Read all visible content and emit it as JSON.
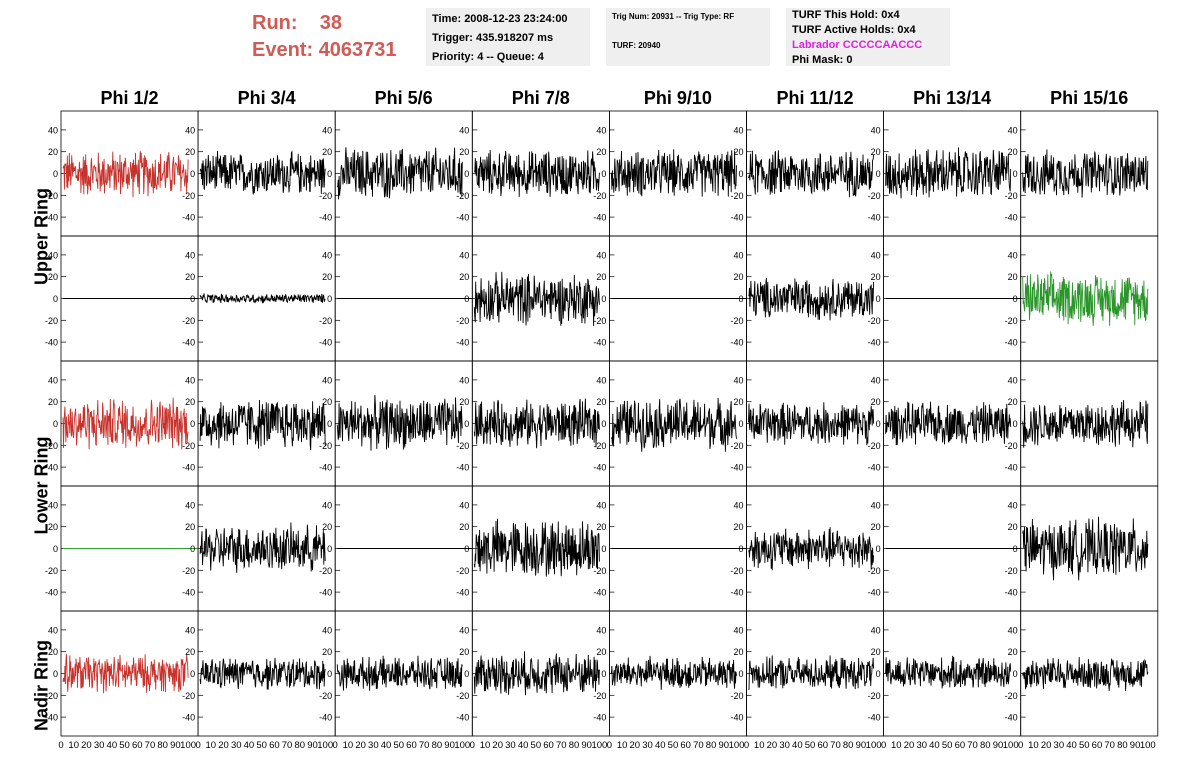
{
  "header": {
    "run_label": "Run:",
    "run_value": "38",
    "event_label": "Event:",
    "event_value": "4063731",
    "run_color": "#d15a55"
  },
  "info_box_1": {
    "time": "Time: 2008-12-23 23:24:00",
    "trigger": "Trigger: 435.918207 ms",
    "priority_queue": "Priority: 4 -- Queue: 4"
  },
  "info_box_2": {
    "trig_num_type": "Trig Num: 20931 -- Trig Type: RF",
    "turf": "TURF: 20940"
  },
  "info_box_3": {
    "turf_this_hold": "TURF This Hold: 0x4",
    "turf_active_holds": "TURF Active Holds: 0x4",
    "labrador": "Labrador CCCCCAACCC",
    "labrador_color": "#e020e0",
    "phi_mask": "Phi Mask: 0"
  },
  "columns": [
    "Phi 1/2",
    "Phi 3/4",
    "Phi 5/6",
    "Phi 7/8",
    "Phi 9/10",
    "Phi 11/12",
    "Phi 13/14",
    "Phi 15/16"
  ],
  "row_labels": {
    "upper": "Upper Ring",
    "lower": "Lower Ring",
    "nadir": "Nadir Ring"
  },
  "chart_data": {
    "type": "line",
    "grid": false,
    "ylim": [
      -50,
      50
    ],
    "xlim": [
      0,
      100
    ],
    "yticks": [
      "40",
      "20",
      "0",
      "-20",
      "-40"
    ],
    "xticks": [
      "0",
      "10",
      "20",
      "30",
      "40",
      "50",
      "60",
      "70",
      "80",
      "90",
      "100"
    ],
    "series_colors": {
      "black": "#000000",
      "red": "#c8322c",
      "green": "#2a962a",
      "flat_green": "#30a030"
    },
    "panel_rows": [
      {
        "row": "upper-1",
        "traces": [
          {
            "style": "red",
            "amplitude": 20
          },
          {
            "style": "black",
            "amplitude": 18
          },
          {
            "style": "black",
            "amplitude": 22
          },
          {
            "style": "black",
            "amplitude": 20
          },
          {
            "style": "black",
            "amplitude": 20
          },
          {
            "style": "black",
            "amplitude": 20
          },
          {
            "style": "black",
            "amplitude": 22
          },
          {
            "style": "black",
            "amplitude": 20
          }
        ]
      },
      {
        "row": "upper-2",
        "traces": [
          {
            "style": "flat",
            "amplitude": 0
          },
          {
            "style": "black",
            "amplitude": 4
          },
          {
            "style": "flat",
            "amplitude": 0
          },
          {
            "style": "black",
            "amplitude": 22
          },
          {
            "style": "flat",
            "amplitude": 0
          },
          {
            "style": "black",
            "amplitude": 18
          },
          {
            "style": "flat",
            "amplitude": 0
          },
          {
            "style": "green",
            "amplitude": 22
          }
        ]
      },
      {
        "row": "lower-1",
        "traces": [
          {
            "style": "red",
            "amplitude": 22
          },
          {
            "style": "black",
            "amplitude": 22
          },
          {
            "style": "black",
            "amplitude": 22
          },
          {
            "style": "black",
            "amplitude": 20
          },
          {
            "style": "black",
            "amplitude": 22
          },
          {
            "style": "black",
            "amplitude": 18
          },
          {
            "style": "black",
            "amplitude": 18
          },
          {
            "style": "black",
            "amplitude": 20
          }
        ]
      },
      {
        "row": "lower-2",
        "traces": [
          {
            "style": "flat_green",
            "amplitude": 0
          },
          {
            "style": "black",
            "amplitude": 20
          },
          {
            "style": "flat",
            "amplitude": 0
          },
          {
            "style": "black",
            "amplitude": 25
          },
          {
            "style": "flat",
            "amplitude": 0
          },
          {
            "style": "black",
            "amplitude": 18
          },
          {
            "style": "flat",
            "amplitude": 0
          },
          {
            "style": "black",
            "amplitude": 25
          }
        ]
      },
      {
        "row": "nadir",
        "traces": [
          {
            "style": "red",
            "amplitude": 16
          },
          {
            "style": "black",
            "amplitude": 14
          },
          {
            "style": "black",
            "amplitude": 14
          },
          {
            "style": "black",
            "amplitude": 18
          },
          {
            "style": "black",
            "amplitude": 14
          },
          {
            "style": "black",
            "amplitude": 14
          },
          {
            "style": "black",
            "amplitude": 14
          },
          {
            "style": "black",
            "amplitude": 14
          }
        ]
      }
    ]
  }
}
